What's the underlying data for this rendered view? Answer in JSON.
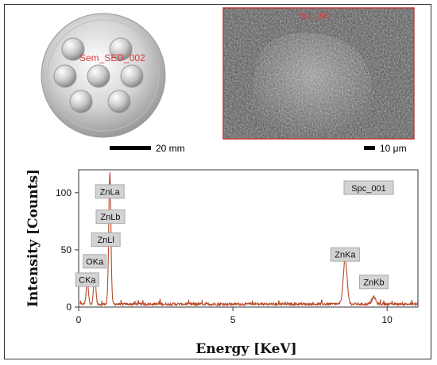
{
  "panels": {
    "holder": {
      "label": "Sem_SED_002",
      "scale_bar": "20 mm"
    },
    "sem": {
      "label": "Spc_001",
      "scale_bar": "10 μm"
    }
  },
  "colors": {
    "spectrum": "#b84a2a",
    "label_box": "#d3d3d3",
    "overlay_text": "#d93a3a"
  },
  "chart_data": {
    "type": "line",
    "title": "",
    "xlabel": "Energy [KeV]",
    "ylabel": "Intensity [Counts]",
    "xlim": [
      0,
      11
    ],
    "ylim": [
      0,
      120
    ],
    "xticks": [
      0,
      5,
      10
    ],
    "yticks": [
      0,
      50,
      100
    ],
    "grid": false,
    "legend": "top-right",
    "series_label": "Spc_001",
    "peaks": [
      {
        "energy": 0.28,
        "counts": 20
      },
      {
        "energy": 0.52,
        "counts": 27
      },
      {
        "energy": 1.01,
        "counts": 116
      },
      {
        "energy": 8.64,
        "counts": 40
      },
      {
        "energy": 9.57,
        "counts": 6
      }
    ],
    "annotations": [
      {
        "text": "ZnLa",
        "energy": 1.01,
        "counts": 101
      },
      {
        "text": "ZnLb",
        "energy": 1.03,
        "counts": 79
      },
      {
        "text": "ZnLl",
        "energy": 0.88,
        "counts": 59
      },
      {
        "text": "OKa",
        "energy": 0.52,
        "counts": 40
      },
      {
        "text": "CKa",
        "energy": 0.28,
        "counts": 24
      },
      {
        "text": "ZnKa",
        "energy": 8.64,
        "counts": 46
      },
      {
        "text": "ZnKb",
        "energy": 9.57,
        "counts": 22
      }
    ]
  }
}
